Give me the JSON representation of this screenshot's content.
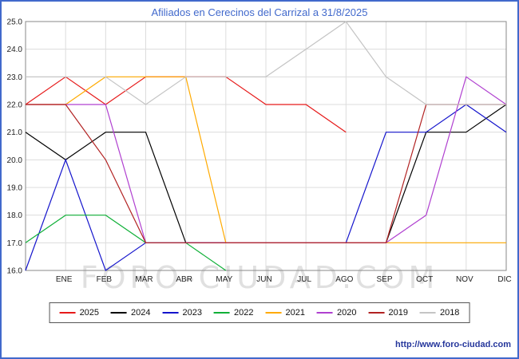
{
  "title": "Afiliados en Cerecinos del Carrizal a 31/8/2025",
  "watermark": "FORO-CIUDAD.COM",
  "footer_url": "http://www.foro-ciudad.com",
  "colors": {
    "title": "#4169cc",
    "frame_border": "#4169cc",
    "grid": "#dcdcdc",
    "plot_border": "#888888",
    "axis_text": "#222222",
    "watermark": "#e0e0e0",
    "footer": "#26379c"
  },
  "chart_data": {
    "type": "line",
    "title": "Afiliados en Cerecinos del Carrizal a 31/8/2025",
    "xlabel": "",
    "ylabel": "",
    "categories": [
      "ENE",
      "FEB",
      "MAR",
      "ABR",
      "MAY",
      "JUN",
      "JUL",
      "AGO",
      "SEP",
      "OCT",
      "NOV",
      "DIC"
    ],
    "ylim": [
      16,
      25
    ],
    "ytick_step": 1,
    "grid": true,
    "grid_color": "#dcdcdc",
    "legend_position": "bottom",
    "note_start": "each series has a leading value drawn at the left axis edge before ENE",
    "series": [
      {
        "name": "2025",
        "color": "#e61919",
        "start": 22,
        "values": [
          23,
          22,
          23,
          23,
          23,
          22,
          22,
          21,
          null,
          null,
          null,
          null
        ]
      },
      {
        "name": "2024",
        "color": "#000000",
        "start": 21,
        "values": [
          20,
          21,
          21,
          17,
          17,
          17,
          17,
          17,
          17,
          21,
          21,
          22
        ]
      },
      {
        "name": "2023",
        "color": "#1414cc",
        "start": 16,
        "values": [
          20,
          16,
          17,
          17,
          17,
          17,
          17,
          17,
          21,
          21,
          22,
          21
        ]
      },
      {
        "name": "2022",
        "color": "#10b038",
        "start": 17,
        "values": [
          18,
          18,
          17,
          17,
          16,
          null,
          null,
          null,
          null,
          null,
          null,
          null
        ]
      },
      {
        "name": "2021",
        "color": "#ffaa00",
        "start": 22,
        "values": [
          22,
          23,
          23,
          23,
          17,
          17,
          17,
          17,
          17,
          17,
          17,
          17
        ]
      },
      {
        "name": "2020",
        "color": "#b040d0",
        "start": 22,
        "values": [
          22,
          22,
          17,
          17,
          17,
          17,
          17,
          17,
          17,
          18,
          23,
          22
        ]
      },
      {
        "name": "2019",
        "color": "#b22222",
        "start": 22,
        "values": [
          22,
          20,
          17,
          17,
          17,
          17,
          17,
          17,
          17,
          22,
          22,
          22
        ]
      },
      {
        "name": "2018",
        "color": "#c4c4c4",
        "start": 23,
        "values": [
          23,
          23,
          22,
          23,
          23,
          23,
          24,
          25,
          23,
          22,
          22,
          22
        ]
      }
    ]
  }
}
